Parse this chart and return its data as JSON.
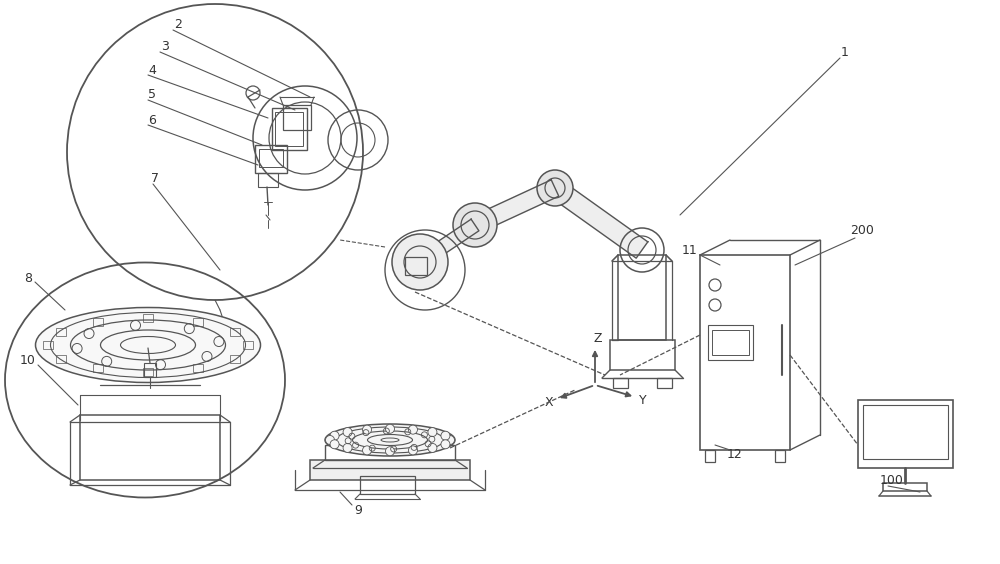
{
  "bg_color": "#ffffff",
  "lc": "#777777",
  "dc": "#555555",
  "tc": "#333333",
  "figsize": [
    10.0,
    5.64
  ],
  "dpi": 100,
  "labels": [
    [
      "1",
      845,
      52
    ],
    [
      "2",
      178,
      25
    ],
    [
      "3",
      165,
      47
    ],
    [
      "4",
      152,
      70
    ],
    [
      "5",
      152,
      95
    ],
    [
      "6",
      152,
      120
    ],
    [
      "7",
      155,
      178
    ],
    [
      "8",
      28,
      278
    ],
    [
      "9",
      358,
      510
    ],
    [
      "10",
      28,
      360
    ],
    [
      "11",
      690,
      250
    ],
    [
      "12",
      735,
      455
    ],
    [
      "200",
      862,
      230
    ],
    [
      "100",
      892,
      480
    ]
  ]
}
